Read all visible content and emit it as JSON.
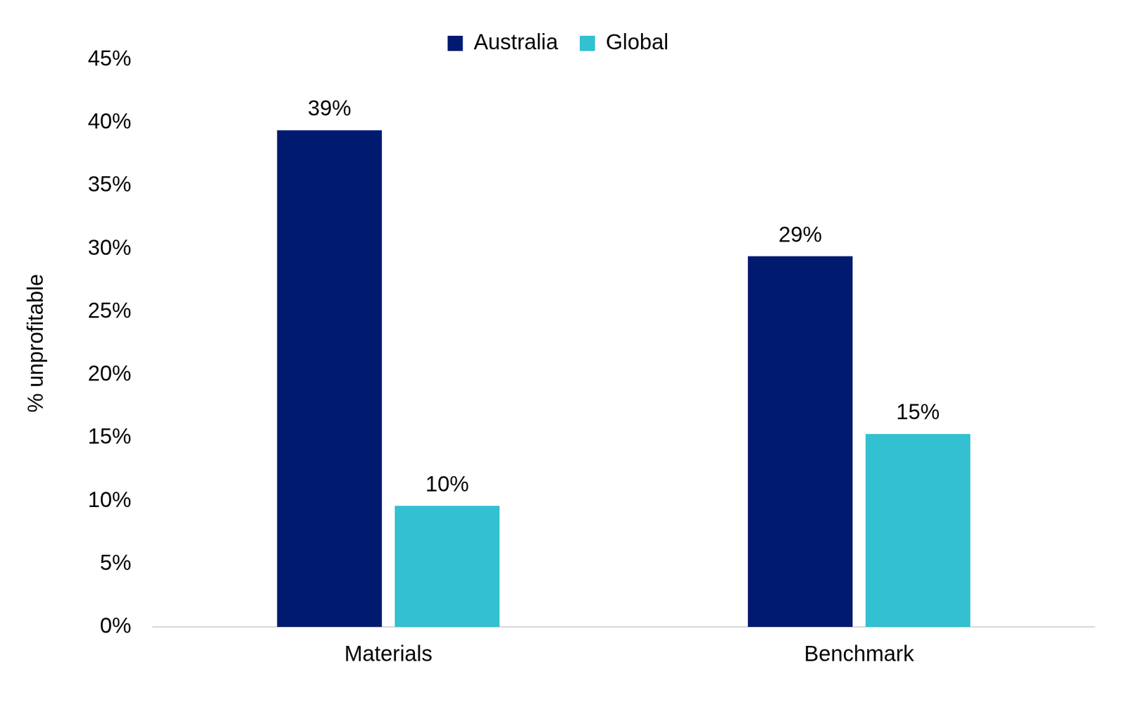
{
  "chart_data": {
    "type": "bar",
    "y_label": "% unprofitable",
    "categories": [
      "Materials",
      "Benchmark"
    ],
    "series": [
      {
        "name": "Australia",
        "color": "#001a70",
        "values": [
          39.4,
          29.4
        ],
        "value_labels": [
          "39%",
          "29%"
        ]
      },
      {
        "name": "Global",
        "color": "#33c0d0",
        "values": [
          9.6,
          15.3
        ],
        "value_labels": [
          "10%",
          "15%"
        ]
      }
    ],
    "ylim": [
      0,
      45
    ],
    "yticks": [
      {
        "value": 0,
        "label": "0%"
      },
      {
        "value": 5,
        "label": "5%"
      },
      {
        "value": 10,
        "label": "10%"
      },
      {
        "value": 15,
        "label": "15%"
      },
      {
        "value": 20,
        "label": "20%"
      },
      {
        "value": 25,
        "label": "25%"
      },
      {
        "value": 30,
        "label": "30%"
      },
      {
        "value": 35,
        "label": "35%"
      },
      {
        "value": 40,
        "label": "40%"
      },
      {
        "value": 45,
        "label": "45%"
      }
    ],
    "grid": false,
    "legend": "top",
    "data_labels": true
  }
}
